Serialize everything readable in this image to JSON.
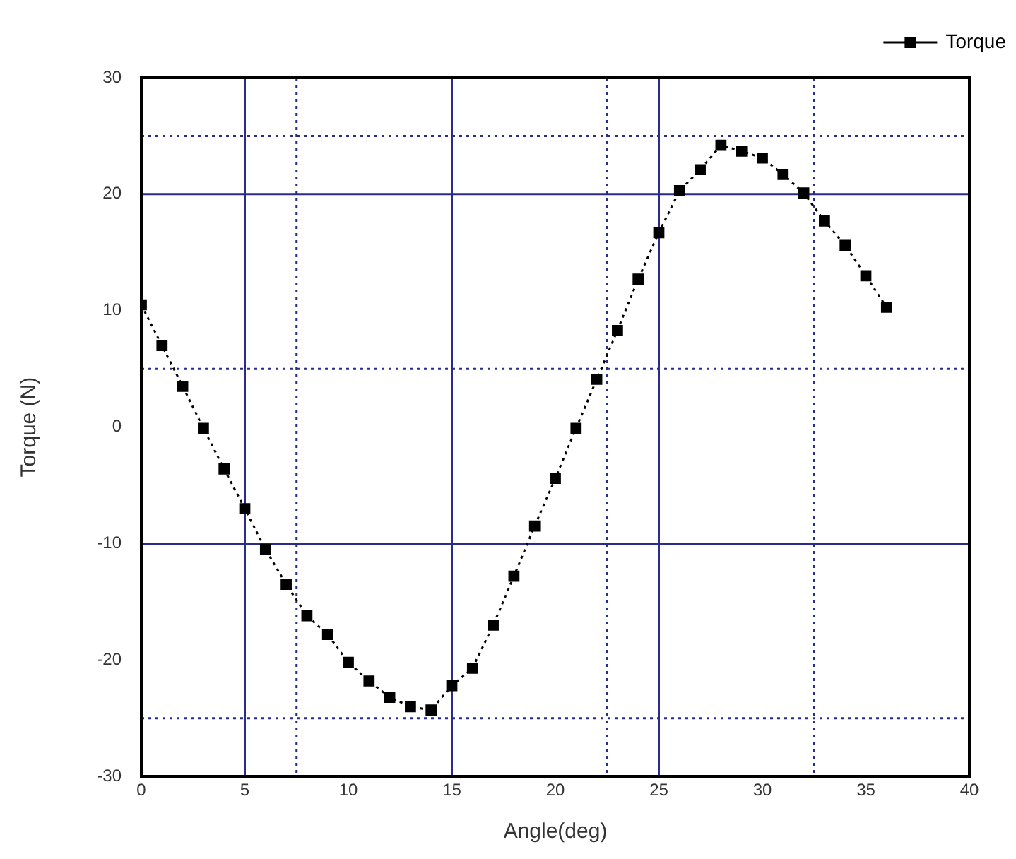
{
  "chart_data": {
    "type": "line",
    "xlabel": "Angle(deg)",
    "ylabel": "Torque (N)",
    "x": [
      0,
      1,
      2,
      3,
      4,
      5,
      6,
      7,
      8,
      9,
      10,
      11,
      12,
      13,
      14,
      15,
      16,
      17,
      18,
      19,
      20,
      21,
      22,
      23,
      24,
      25,
      26,
      27,
      28,
      29,
      30,
      31,
      32,
      33,
      34,
      35,
      36
    ],
    "series": [
      {
        "name": "Torque",
        "color": "#000000",
        "values": [
          10.5,
          7,
          3.5,
          -0.1,
          -3.6,
          -7,
          -10.5,
          -13.5,
          -16.2,
          -17.8,
          -20.2,
          -21.8,
          -23.2,
          -24,
          -24.3,
          -22.2,
          -20.7,
          -17,
          -12.8,
          -8.5,
          -4.4,
          -0.1,
          4.1,
          8.3,
          12.7,
          16.7,
          20.3,
          22.1,
          24.2,
          23.7,
          23.1,
          21.7,
          20.1,
          17.7,
          15.6,
          13,
          10.3
        ]
      }
    ],
    "xlim": [
      0,
      40
    ],
    "xticks": [
      0,
      5,
      10,
      15,
      20,
      25,
      30,
      35,
      40
    ],
    "ylim": [
      -30,
      30
    ],
    "yticks": [
      -30,
      -20,
      -10,
      0,
      10,
      20,
      30
    ],
    "ref_lines": [
      {
        "axis": "x",
        "value": 5,
        "color": "#2b2b8c",
        "line_style": "solid"
      },
      {
        "axis": "x",
        "value": 15,
        "color": "#2b2b8c",
        "line_style": "solid"
      },
      {
        "axis": "x",
        "value": 25,
        "color": "#2b2b8c",
        "line_style": "solid"
      },
      {
        "axis": "x",
        "value": 7.5,
        "color": "#2b2b8c",
        "line_style": "dotted"
      },
      {
        "axis": "x",
        "value": 22.5,
        "color": "#2b2b8c",
        "line_style": "dotted"
      },
      {
        "axis": "x",
        "value": 32.5,
        "color": "#2b2b8c",
        "line_style": "dotted"
      },
      {
        "axis": "y",
        "value": 20,
        "color": "#2b2b8c",
        "line_style": "solid"
      },
      {
        "axis": "y",
        "value": -10,
        "color": "#2b2b8c",
        "line_style": "solid"
      },
      {
        "axis": "y",
        "value": 25,
        "color": "#2b2b8c",
        "line_style": "dotted"
      },
      {
        "axis": "y",
        "value": 5,
        "color": "#2b2b8c",
        "line_style": "dotted"
      },
      {
        "axis": "y",
        "value": -25,
        "color": "#2b2b8c",
        "line_style": "dotted"
      }
    ],
    "grid": false,
    "legend": "top right",
    "marker": "square",
    "line_style": "dotted"
  }
}
